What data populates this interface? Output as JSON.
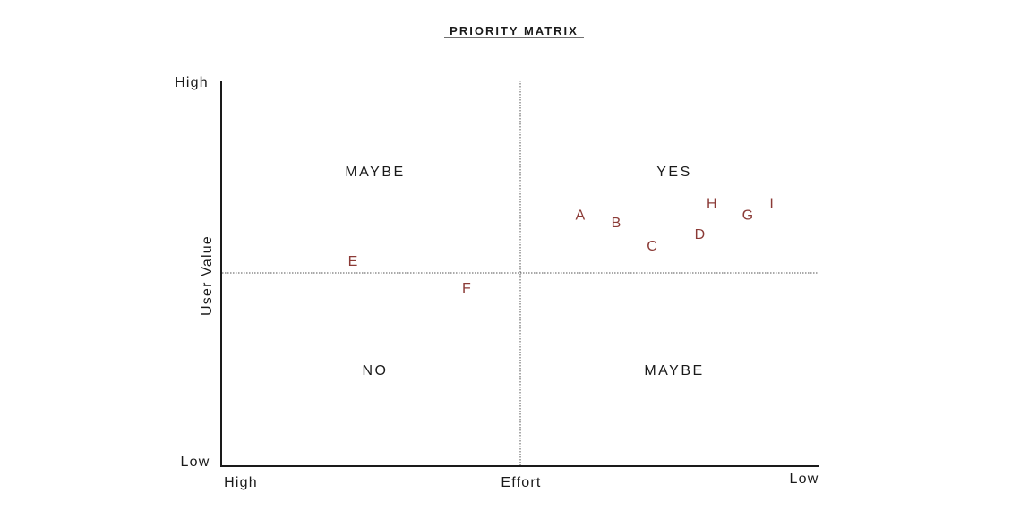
{
  "title": "PRIORITY MATRIX",
  "axes": {
    "x_label": "Effort",
    "x_high": "High",
    "x_low": "Low",
    "y_label": "User Value",
    "y_high": "High",
    "y_low": "Low"
  },
  "quadrants": {
    "top_left": "MAYBE",
    "top_right": "YES",
    "bottom_left": "NO",
    "bottom_right": "MAYBE"
  },
  "colors": {
    "point": "#8b3a36",
    "text": "#1a1a1a"
  },
  "chart_data": {
    "type": "scatter",
    "x_range": [
      0,
      1
    ],
    "y_range": [
      0,
      1
    ],
    "points": [
      {
        "label": "A",
        "x": 0.6,
        "y": 0.65
      },
      {
        "label": "B",
        "x": 0.66,
        "y": 0.63
      },
      {
        "label": "C",
        "x": 0.72,
        "y": 0.57
      },
      {
        "label": "D",
        "x": 0.8,
        "y": 0.6
      },
      {
        "label": "E",
        "x": 0.22,
        "y": 0.53
      },
      {
        "label": "F",
        "x": 0.41,
        "y": 0.46
      },
      {
        "label": "G",
        "x": 0.88,
        "y": 0.65
      },
      {
        "label": "H",
        "x": 0.82,
        "y": 0.68
      },
      {
        "label": "I",
        "x": 0.92,
        "y": 0.68
      }
    ]
  }
}
